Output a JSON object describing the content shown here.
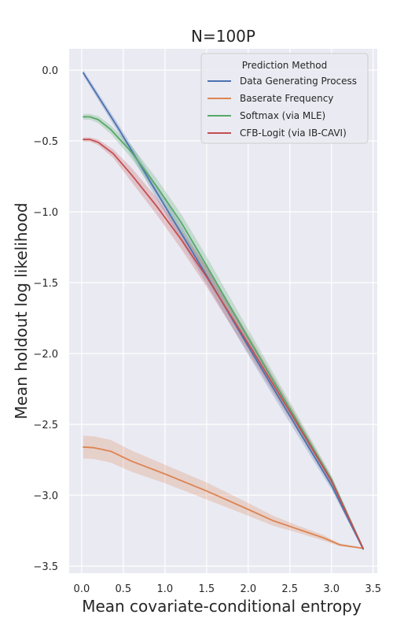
{
  "chart_data": {
    "type": "line",
    "title": "N=100P",
    "xlabel": "Mean covariate-conditional entropy",
    "ylabel": "Mean holdout log likelihood",
    "xlim": [
      -0.15,
      3.55
    ],
    "ylim": [
      -3.55,
      0.15
    ],
    "xticks": [
      0.0,
      0.5,
      1.0,
      1.5,
      2.0,
      2.5,
      3.0,
      3.5
    ],
    "xtick_labels": [
      "0.0",
      "0.5",
      "1.0",
      "1.5",
      "2.0",
      "2.5",
      "3.0",
      "3.5"
    ],
    "yticks": [
      0.0,
      -0.5,
      -1.0,
      -1.5,
      -2.0,
      -2.5,
      -3.0,
      -3.5
    ],
    "ytick_labels": [
      "0.0",
      "−0.5",
      "−1.0",
      "−1.5",
      "−2.0",
      "−2.5",
      "−3.0",
      "−3.5"
    ],
    "grid": true,
    "legend": {
      "title": "Prediction Method",
      "placement": "top-right"
    },
    "series": [
      {
        "name": "Data Generating Process",
        "color": "#4c72b0",
        "x": [
          0.02,
          0.45,
          1.0,
          1.5,
          2.0,
          2.5,
          3.0,
          3.38
        ],
        "y": [
          -0.02,
          -0.42,
          -0.96,
          -1.45,
          -1.95,
          -2.44,
          -2.93,
          -3.38
        ],
        "band": [
          0.02,
          0.03,
          0.05,
          0.06,
          0.06,
          0.05,
          0.03,
          0.01
        ]
      },
      {
        "name": "Baserate Frequency",
        "color": "#dd8452",
        "x": [
          0.02,
          0.15,
          0.35,
          0.6,
          1.0,
          1.5,
          2.0,
          2.3,
          2.6,
          2.9,
          3.1,
          3.38
        ],
        "y": [
          -2.66,
          -2.665,
          -2.69,
          -2.76,
          -2.85,
          -2.97,
          -3.1,
          -3.18,
          -3.24,
          -3.3,
          -3.35,
          -3.375
        ],
        "band": [
          0.08,
          0.08,
          0.08,
          0.075,
          0.065,
          0.06,
          0.045,
          0.035,
          0.025,
          0.02,
          0.01,
          0.005
        ]
      },
      {
        "name": "Softmax (via MLE)",
        "color": "#55a868",
        "x": [
          0.02,
          0.1,
          0.2,
          0.35,
          0.6,
          0.9,
          1.2,
          1.5,
          2.0,
          2.5,
          3.0,
          3.38
        ],
        "y": [
          -0.33,
          -0.33,
          -0.35,
          -0.42,
          -0.58,
          -0.82,
          -1.08,
          -1.38,
          -1.89,
          -2.39,
          -2.89,
          -3.375
        ],
        "band": [
          0.02,
          0.02,
          0.025,
          0.03,
          0.045,
          0.055,
          0.06,
          0.065,
          0.06,
          0.05,
          0.03,
          0.01
        ]
      },
      {
        "name": "CFB-Logit (via IB-CAVI)",
        "color": "#c44e52",
        "x": [
          0.02,
          0.1,
          0.2,
          0.38,
          0.6,
          0.9,
          1.2,
          1.5,
          2.0,
          2.5,
          3.0,
          3.38
        ],
        "y": [
          -0.49,
          -0.49,
          -0.51,
          -0.59,
          -0.74,
          -0.96,
          -1.2,
          -1.46,
          -1.93,
          -2.41,
          -2.9,
          -3.375
        ],
        "band": [
          0.015,
          0.015,
          0.02,
          0.03,
          0.05,
          0.06,
          0.065,
          0.07,
          0.065,
          0.05,
          0.03,
          0.01
        ]
      }
    ]
  }
}
